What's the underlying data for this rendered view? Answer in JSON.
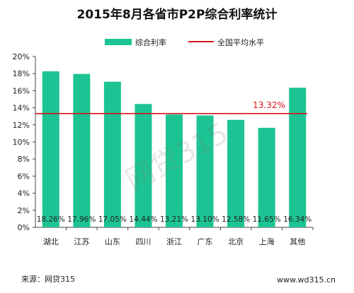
{
  "chart_data": {
    "type": "bar",
    "title": "2015年8月各省市P2P综合利率统计",
    "categories": [
      "湖北",
      "江苏",
      "山东",
      "四川",
      "浙江",
      "广东",
      "北京",
      "上海",
      "其他"
    ],
    "series": [
      {
        "name": "综合利率",
        "values": [
          18.26,
          17.96,
          17.05,
          14.44,
          13.21,
          13.1,
          12.58,
          11.65,
          16.34
        ],
        "labels": [
          "18.26%",
          "17.96%",
          "17.05%",
          "14.44%",
          "13.21%",
          "13.10%",
          "12.58%",
          "11.65%",
          "16.34%"
        ]
      }
    ],
    "reference_line": {
      "name": "全国平均水平",
      "value": 13.32,
      "label": "13.32%"
    },
    "yticks": [
      "0%",
      "2%",
      "4%",
      "6%",
      "8%",
      "10%",
      "12%",
      "14%",
      "16%",
      "18%",
      "20%"
    ],
    "ylim": [
      0,
      20
    ],
    "xlabel": "",
    "ylabel": "",
    "legend_position": "top",
    "grid": false,
    "colors": {
      "bar": "#1dc493",
      "line": "#d8141b",
      "avg_label": "#d8141b",
      "axis": "#444444"
    }
  },
  "source": "来源：网贷315",
  "website": "www.wd315.cn",
  "watermark": "网贷315"
}
